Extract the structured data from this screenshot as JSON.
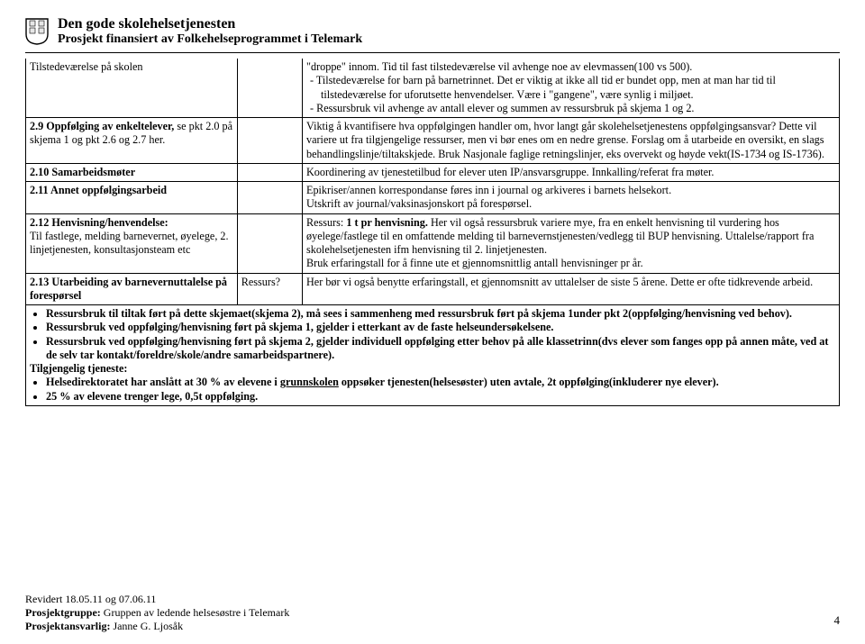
{
  "header": {
    "title": "Den gode skolehelsetjenesten",
    "subtitle": "Prosjekt finansiert av Folkehelseprogrammet i Telemark"
  },
  "rows": [
    {
      "left_html": "Tilstedeværelse på skolen",
      "mid": "",
      "right_html": "\"droppe\" innom. Tid til fast tilstedeværelse vil avhenge noe av elevmassen(100 vs 500).<ul class='dash'><li>Tilstedeværelse for barn på barnetrinnet. Det er viktig at ikke all tid er bundet opp, men at man har tid til tilstedeværelse for uforutsette henvendelser. Være i \"gangene\", være synlig i miljøet.</li><li>Ressursbruk vil avhenge av antall elever og summen av ressursbruk på skjema 1 og 2.</li></ul>"
    },
    {
      "left_html": "<span class='b'>2.9 Oppfølging av enkeltelever,</span> se pkt 2.0 på skjema 1 og pkt 2.6 og 2.7 her.",
      "mid": "",
      "right_html": "Viktig å kvantifisere hva oppfølgingen handler om, hvor langt går skolehelsetjenestens oppfølgingsansvar? Dette vil variere ut fra tilgjengelige ressurser, men vi bør enes om en nedre grense. Forslag om å utarbeide en oversikt, en slags behandlingslinje/tiltakskjede. Bruk Nasjonale faglige retningslinjer, eks overvekt og høyde vekt(IS-1734 og IS-1736)."
    },
    {
      "left_html": "<span class='b'>2.10 Samarbeidsmøter</span>",
      "mid": "",
      "right_html": "Koordinering av tjenestetilbud for elever uten IP/ansvarsgruppe. Innkalling/referat fra møter."
    },
    {
      "left_html": "<span class='b'>2.11 Annet oppfølgingsarbeid</span>",
      "mid": "",
      "right_html": "Epikriser/annen korrespondanse føres inn i journal og arkiveres i barnets helsekort.<br>Utskrift av journal/vaksinasjonskort på forespørsel."
    },
    {
      "left_html": "<span class='b'>2.12 Henvisning/henvendelse:</span><br>Til fastlege, melding barnevernet, øyelege, 2. linjetjenesten, konsultasjonsteam etc",
      "mid": "",
      "right_html": "Ressurs: <span class='b'>1 t pr henvisning.</span> Her vil også ressursbruk variere mye, fra en enkelt henvisning til vurdering hos øyelege/fastlege til en omfattende melding til barnevernstjenesten/vedlegg til BUP henvisning. Uttalelse/rapport fra skolehelsetjenesten ifm henvisning til 2. linjetjenesten.<br>Bruk erfaringstall for å finne ute et gjennomsnittlig antall henvisninger pr år."
    },
    {
      "left_html": "<span class='b'>2.13 Utarbeiding av barnevernuttalelse på forespørsel</span>",
      "mid": "Ressurs?",
      "right_html": "Her bør vi også benytte erfaringstall, et gjennomsnitt av uttalelser de siste 5 årene. Dette er ofte tidkrevende arbeid."
    }
  ],
  "span_bullets": [
    "Ressursbruk til tiltak ført på dette skjemaet(skjema 2), må sees i sammenheng med ressursbruk ført på skjema 1under pkt 2(oppfølging/henvisning ved behov).",
    "Ressursbruk ved oppfølging/henvisning ført på skjema 1, gjelder i etterkant av de faste helseundersøkelsene.",
    "Ressursbruk ved oppfølging/henvisning ført på skjema 2, gjelder individuell oppfølging etter behov på alle klassetrinn(dvs elever som fanges opp på annen måte, ved at de selv tar kontakt/foreldre/skole/andre samarbeidspartnere)."
  ],
  "tilgjengelig_label": "Tilgjengelig tjeneste:",
  "span_bullets2_html": [
    "Helsedirektoratet har anslått at 30 % av elevene i <span class='u'>grunnskolen</span> oppsøker tjenesten(helsesøster) uten avtale, <span class='b'>2t oppfølging(inkluderer nye elever).</span>",
    "25 % av elevene trenger lege, <span class='b'>0,5t oppfølging.</span>"
  ],
  "footer": {
    "line1": "Revidert 18.05.11 og 07.06.11",
    "line2_label": "Prosjektgruppe:",
    "line2_value": " Gruppen av ledende helsesøstre i Telemark",
    "line3_label": "Prosjektansvarlig:",
    "line3_value": " Janne G. Ljosåk"
  },
  "page_number": "4"
}
